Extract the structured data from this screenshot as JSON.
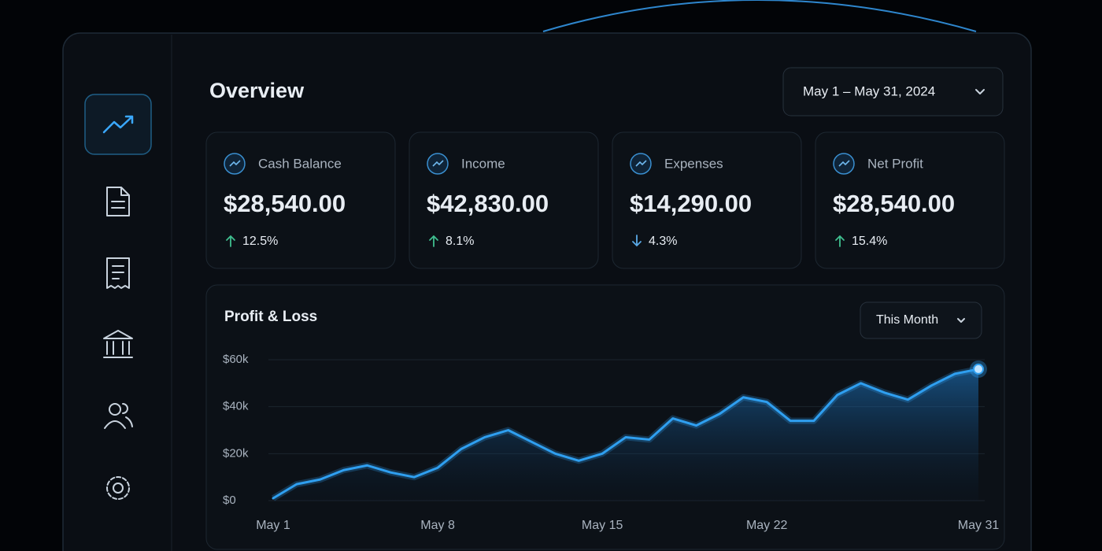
{
  "header": {
    "title": "Overview",
    "date_range": "May 1 – May 31, 2024"
  },
  "cards": [
    {
      "label": "Cash Balance",
      "value": "$28,540.00",
      "change": "12.5%",
      "trend": "up"
    },
    {
      "label": "Income",
      "value": "$42,830.00",
      "change": "8.1%",
      "trend": "up"
    },
    {
      "label": "Expenses",
      "value": "$14,290.00",
      "change": "4.3%",
      "trend": "down"
    },
    {
      "label": "Net Profit",
      "value": "$28,540.00",
      "change": "15.4%",
      "trend": "up"
    }
  ],
  "chart_data": {
    "type": "area",
    "title": "Profit & Loss",
    "period": "This Month",
    "categories": [
      "May 1",
      null,
      null,
      null,
      null,
      null,
      null,
      "May 8",
      null,
      null,
      null,
      null,
      null,
      null,
      "May 15",
      null,
      null,
      null,
      null,
      null,
      null,
      "May 22",
      null,
      null,
      null,
      null,
      null,
      null,
      null,
      null,
      "May 31"
    ],
    "values": [
      1000,
      7000,
      9000,
      13000,
      15000,
      12000,
      10000,
      14000,
      22000,
      27000,
      30000,
      25000,
      20000,
      17000,
      20000,
      27000,
      26000,
      35000,
      32000,
      37000,
      44000,
      42000,
      34000,
      34000,
      45000,
      50000,
      46000,
      43000,
      49000,
      54000,
      56000
    ],
    "color": "#2f9ff0",
    "ylim": [
      0,
      60000
    ],
    "yticks": [
      {
        "value": 0,
        "label": "$0"
      },
      {
        "value": 20000,
        "label": "$20k"
      },
      {
        "value": 40000,
        "label": "$40k"
      },
      {
        "value": 60000,
        "label": "$60k"
      }
    ],
    "grid": true
  }
}
